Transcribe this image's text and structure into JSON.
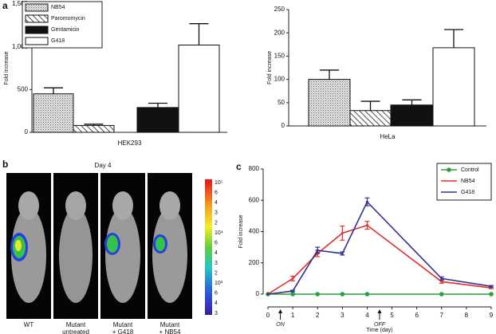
{
  "panel_labels": [
    "a",
    "b",
    "c"
  ],
  "chart_data": [
    {
      "type": "bar",
      "categories": [
        "HEK293"
      ],
      "y_label": "Fold increase",
      "ylim": [
        0,
        1500
      ],
      "yticks": [
        0,
        500,
        {
          "value": 1000,
          "label": "1,000"
        },
        {
          "value": 1500,
          "label": "1,500"
        }
      ],
      "legend": true,
      "series": [
        {
          "name": "NB54",
          "pattern": "dots",
          "values": [
            450
          ],
          "errors": [
            70
          ]
        },
        {
          "name": "Paromomycin",
          "pattern": "hatch",
          "values": [
            80
          ],
          "errors": [
            15
          ]
        },
        {
          "name": "Gentamicin",
          "pattern": "black",
          "values": [
            290
          ],
          "errors": [
            50
          ]
        },
        {
          "name": "G418",
          "pattern": "white",
          "values": [
            1020
          ],
          "errors": [
            250
          ]
        }
      ]
    },
    {
      "type": "bar",
      "categories": [
        "HeLa"
      ],
      "y_label": "Fold increase",
      "ylim": [
        0,
        250
      ],
      "yticks": [
        0,
        50,
        100,
        150,
        200,
        250
      ],
      "legend": false,
      "series": [
        {
          "pattern": "dots",
          "values": [
            100
          ],
          "errors": [
            20
          ]
        },
        {
          "pattern": "hatch",
          "values": [
            33
          ],
          "errors": [
            20
          ]
        },
        {
          "pattern": "black",
          "values": [
            45
          ],
          "errors": [
            11
          ]
        },
        {
          "pattern": "white",
          "values": [
            168
          ],
          "errors": [
            39
          ]
        }
      ]
    },
    {
      "type": "line",
      "x_label": "Time (day)",
      "y_label": "Fold increase",
      "x": [
        0,
        1,
        2,
        3,
        4,
        7,
        9
      ],
      "xlim": [
        0,
        9
      ],
      "xticks": [
        0,
        1,
        2,
        3,
        4,
        5,
        6,
        7,
        8,
        9
      ],
      "ylim": [
        0,
        800
      ],
      "yticks": [
        0,
        200,
        400,
        600,
        800
      ],
      "annotations": [
        {
          "text": "ON",
          "x": 0.5
        },
        {
          "text": "OFF",
          "x": 4.5
        }
      ],
      "series": [
        {
          "name": "Control",
          "color": "#2e9e3e",
          "values": [
            0,
            0,
            0,
            0,
            0,
            0,
            0
          ]
        },
        {
          "name": "NB54",
          "color": "#e03030",
          "values": [
            0,
            100,
            260,
            390,
            440,
            80,
            40
          ],
          "errors": [
            0,
            15,
            20,
            45,
            25,
            10,
            5
          ]
        },
        {
          "name": "G418",
          "color": "#33338f",
          "values": [
            0,
            20,
            280,
            260,
            590,
            100,
            50
          ],
          "errors": [
            0,
            5,
            20,
            10,
            25,
            10,
            5
          ]
        }
      ]
    }
  ],
  "panel_b": {
    "title": "Day 4",
    "labels": [
      "WT",
      "Mutant\nuntreated",
      "Mutant\n+ G418",
      "Mutant\n+ NB54"
    ],
    "colorbar_labels": [
      "10⁵",
      "6",
      "4",
      "3",
      "2",
      "10⁴",
      "6",
      "4",
      "3",
      "2",
      "10³",
      "6",
      "4",
      "3"
    ]
  }
}
